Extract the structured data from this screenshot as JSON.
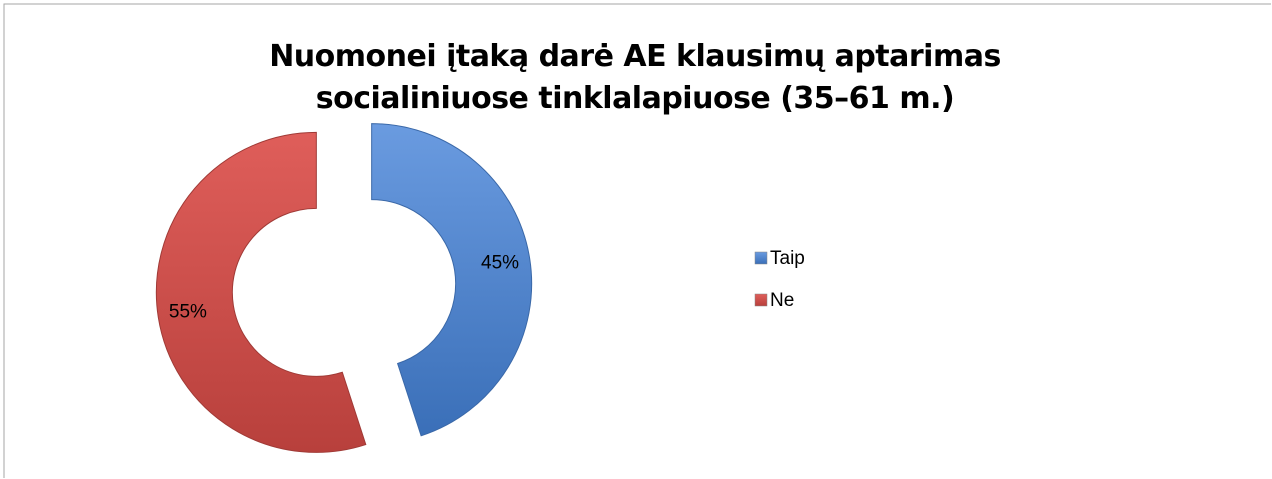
{
  "chart_data": {
    "type": "donut",
    "title": "Nuomonei įtaką darė AE klausimų aptarimas socialiniuose tinklalapiuose (35–61 m.)",
    "categories": [
      "Taip",
      "Ne"
    ],
    "values": [
      45,
      55
    ],
    "value_labels": [
      "45%",
      "55%"
    ],
    "colors": [
      "#4f81bd",
      "#c0504d"
    ],
    "legend": "right"
  }
}
